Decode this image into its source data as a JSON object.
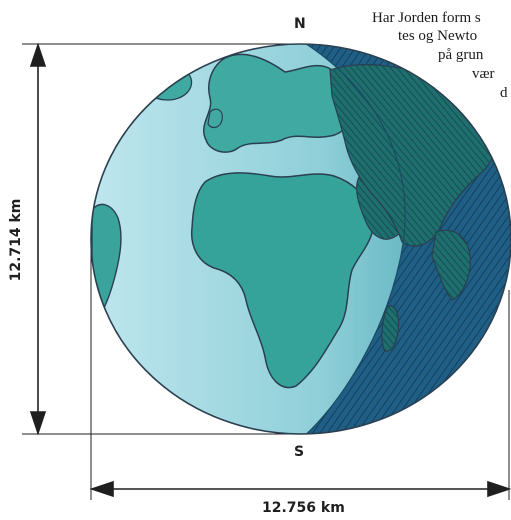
{
  "poles": {
    "north": "N",
    "south": "S"
  },
  "dimensions": {
    "polar_diameter": "12.714 km",
    "equatorial_diameter": "12.756 km"
  },
  "caption_lines": [
    "Har Jorden form s",
    "tes og Newto",
    "på grun",
    "vær",
    "d"
  ],
  "colors": {
    "ocean_day": "#4fb5b3",
    "ocean_light": "#a8d8e2",
    "land_day": "#3aa39b",
    "land_light": "#bfe3ea",
    "night_side": "#1d5f86",
    "night_land": "#1f7373",
    "outline": "#2a3f4f",
    "dimension_line": "#1f1f1f"
  }
}
